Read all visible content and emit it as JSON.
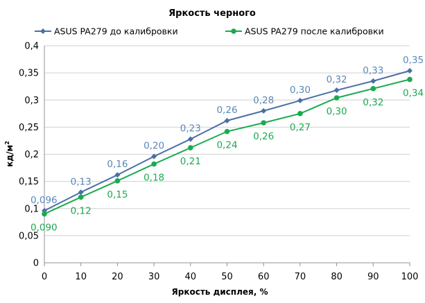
{
  "chart_data": {
    "type": "line",
    "title": "Яркость черного",
    "xlabel": "Яркость дисплея, %",
    "ylabel": "кд/м",
    "ylabel_superscript": "2",
    "x": [
      0,
      10,
      20,
      30,
      40,
      50,
      60,
      70,
      80,
      90,
      100
    ],
    "x_tick_labels": [
      "0",
      "10",
      "20",
      "30",
      "40",
      "50",
      "60",
      "70",
      "80",
      "90",
      "100"
    ],
    "ylim": [
      0,
      0.4
    ],
    "y_ticks": [
      0,
      0.05,
      0.1,
      0.15,
      0.2,
      0.25,
      0.3,
      0.35,
      0.4
    ],
    "y_tick_labels": [
      "0",
      "0,05",
      "0,1",
      "0,15",
      "0,2",
      "0,25",
      "0,3",
      "0,35",
      "0,4"
    ],
    "grid": "horizontal",
    "legend_position": "top",
    "series": [
      {
        "name": "ASUS PA279 до калибровки",
        "color": "#4a6fa5",
        "label_color": "#5b87b8",
        "marker": "diamond",
        "label_position": "above",
        "values": [
          0.096,
          0.13,
          0.162,
          0.196,
          0.228,
          0.262,
          0.28,
          0.299,
          0.318,
          0.335,
          0.354
        ],
        "labels": [
          "0,096",
          "0,13",
          "0,16",
          "0,20",
          "0,23",
          "0,26",
          "0,28",
          "0,30",
          "0,32",
          "0,33",
          "0,35"
        ]
      },
      {
        "name": "ASUS PA279 после калибровки",
        "color": "#1aaa50",
        "label_color": "#1aaa50",
        "marker": "circle",
        "label_position": "below",
        "values": [
          0.09,
          0.121,
          0.151,
          0.182,
          0.212,
          0.242,
          0.258,
          0.275,
          0.304,
          0.321,
          0.338
        ],
        "labels": [
          "0,090",
          "0,12",
          "0,15",
          "0,18",
          "0,21",
          "0,24",
          "0,26",
          "0,27",
          "0,30",
          "0,32",
          "0,34"
        ]
      }
    ]
  }
}
